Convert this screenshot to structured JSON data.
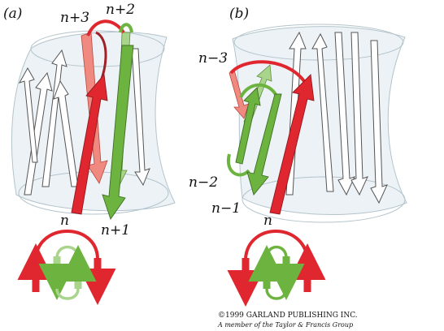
{
  "panels": {
    "a": {
      "tag": "(a)",
      "labels": {
        "n3": "n+3",
        "n2": "n+2",
        "n": "n",
        "n1": "n+1"
      }
    },
    "b": {
      "tag": "(b)",
      "labels": {
        "nm3": "n−3",
        "nm2": "n−2",
        "nm1": "n−1",
        "n": "n"
      }
    }
  },
  "copyright": {
    "line1": "©1999 GARLAND PUBLISHING INC.",
    "line2": "A member of the Taylor & Francis Group"
  },
  "colors": {
    "red": "#e0262e",
    "red_light": "#f08a80",
    "green": "#6db33f",
    "green_light": "#a9d48b",
    "barrel_fill": "#dde8ee",
    "barrel_stroke": "#b4c4cc"
  }
}
